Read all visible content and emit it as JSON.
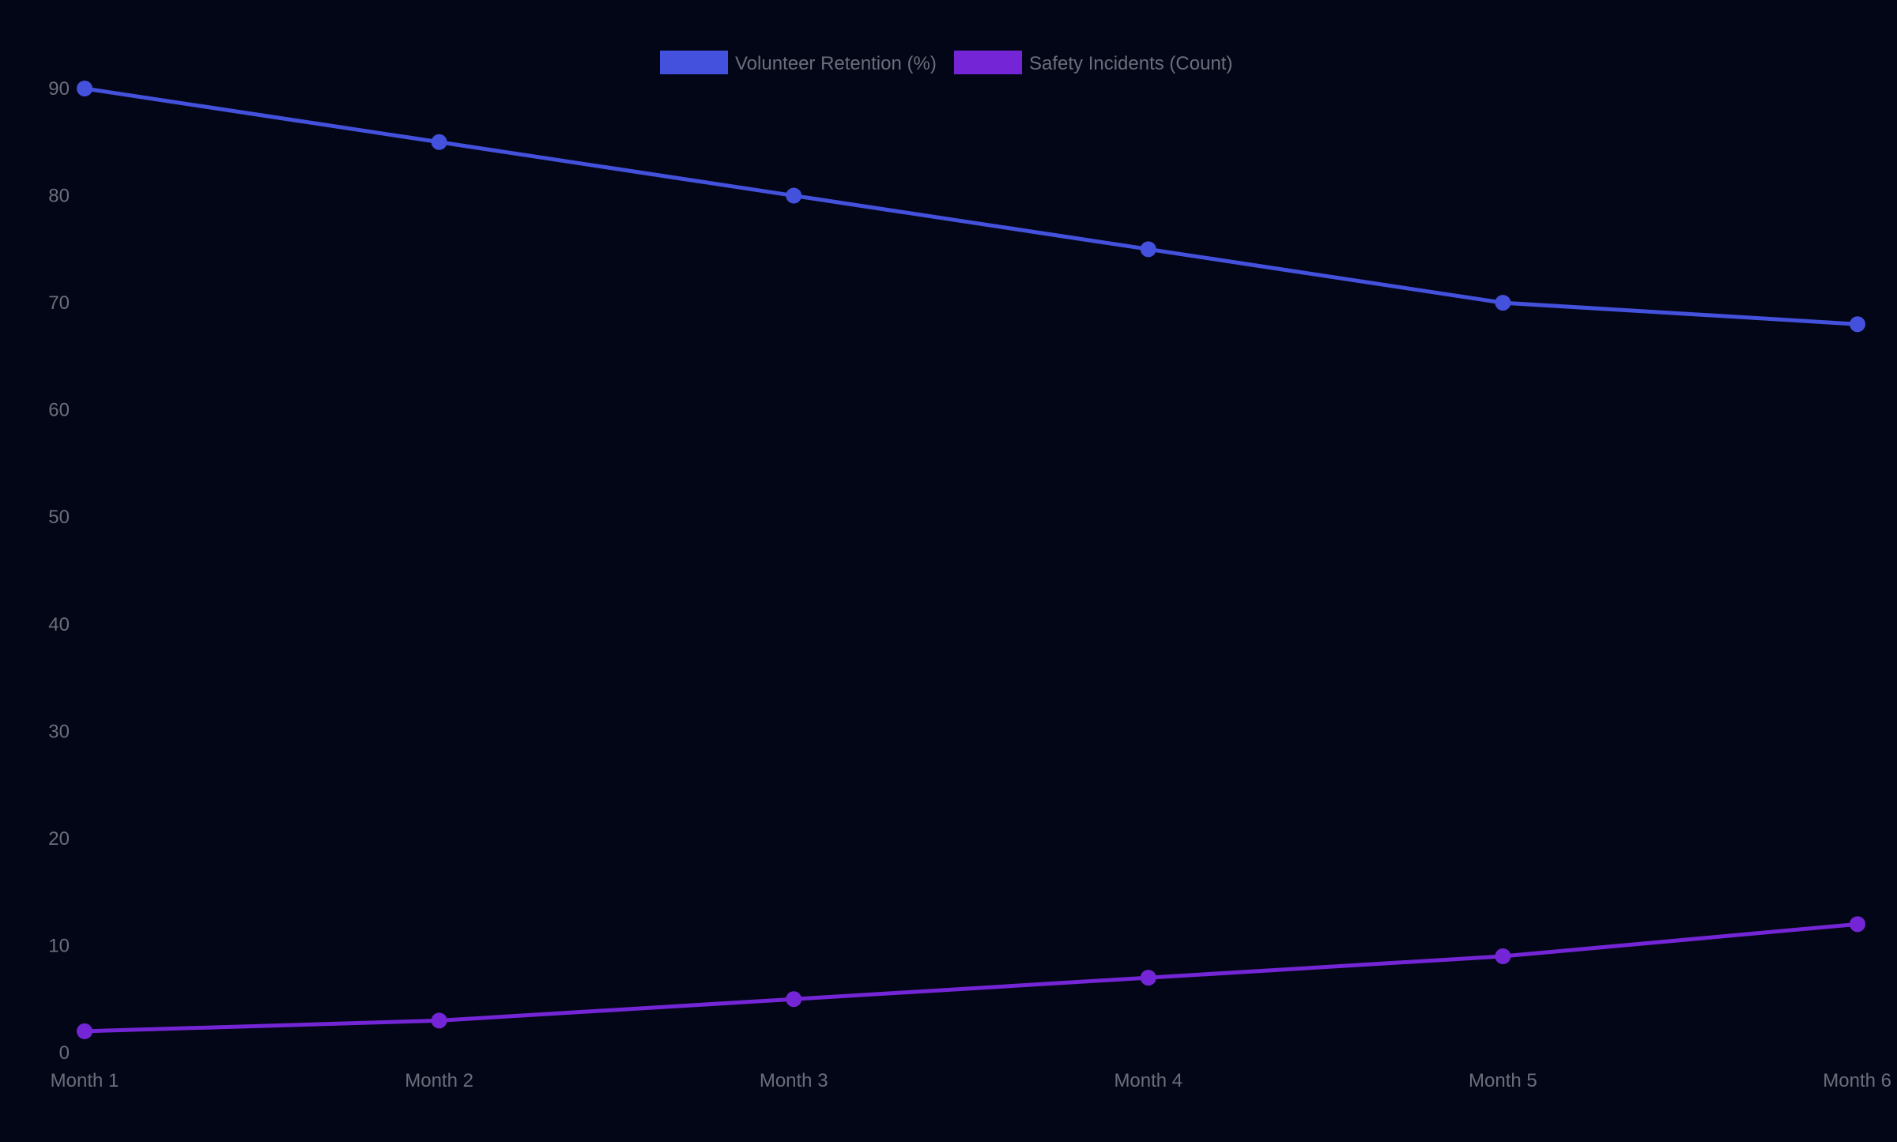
{
  "colors": {
    "background": "#030617",
    "text": "#6b6e7a",
    "retention": "#4451dc",
    "incidents": "#7426d6"
  },
  "chart_data": {
    "type": "line",
    "title": "",
    "xlabel": "",
    "ylabel": "",
    "categories": [
      "Month 1",
      "Month 2",
      "Month 3",
      "Month 4",
      "Month 5",
      "Month 6"
    ],
    "ylim": [
      0,
      90
    ],
    "yticks": [
      0,
      10,
      20,
      30,
      40,
      50,
      60,
      70,
      80,
      90
    ],
    "grid": false,
    "legend_position": "top-center",
    "series": [
      {
        "name": "Volunteer Retention (%)",
        "color": "#4451dc",
        "values": [
          90,
          85,
          80,
          75,
          70,
          68
        ]
      },
      {
        "name": "Safety Incidents (Count)",
        "color": "#7426d6",
        "values": [
          2,
          3,
          5,
          7,
          9,
          12
        ]
      }
    ]
  }
}
